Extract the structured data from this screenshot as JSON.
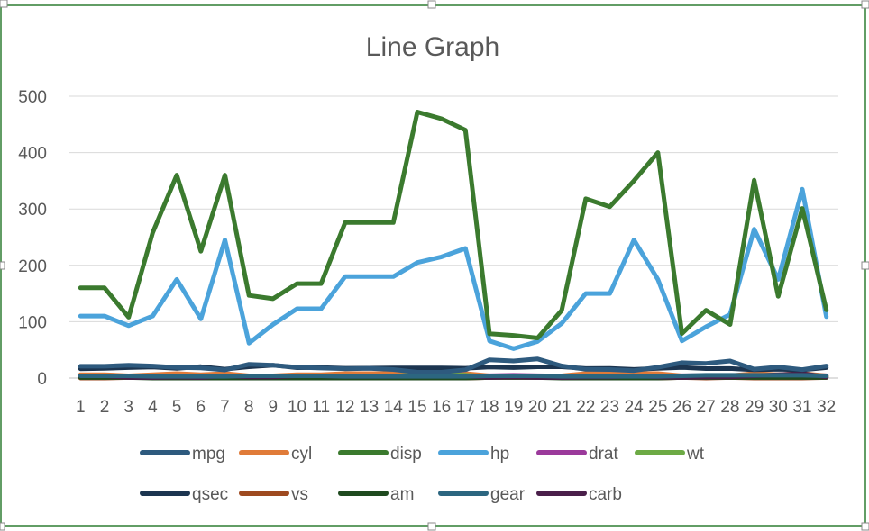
{
  "chart_data": {
    "type": "line",
    "title": "Line Graph",
    "xlabel": "",
    "ylabel": "",
    "ylim": [
      0,
      500
    ],
    "yticks": [
      0,
      100,
      200,
      300,
      400,
      500
    ],
    "grid": true,
    "legend_position": "bottom",
    "x": [
      1,
      2,
      3,
      4,
      5,
      6,
      7,
      8,
      9,
      10,
      11,
      12,
      13,
      14,
      15,
      16,
      17,
      18,
      19,
      20,
      21,
      22,
      23,
      24,
      25,
      26,
      27,
      28,
      29,
      30,
      31,
      32
    ],
    "series": [
      {
        "name": "mpg",
        "color": "#2E5A7E",
        "values": [
          21,
          21,
          22.8,
          21.4,
          18.7,
          18.1,
          14.3,
          24.4,
          22.8,
          19.2,
          17.8,
          16.4,
          17.3,
          15.2,
          10.4,
          10.4,
          14.7,
          32.4,
          30.4,
          33.9,
          21.5,
          15.5,
          15.2,
          13.3,
          19.2,
          27.3,
          26,
          30.4,
          15.8,
          19.7,
          15,
          21.4
        ]
      },
      {
        "name": "cyl",
        "color": "#E07B39",
        "values": [
          6,
          6,
          4,
          6,
          8,
          6,
          8,
          4,
          4,
          6,
          6,
          8,
          8,
          8,
          8,
          8,
          8,
          4,
          4,
          4,
          4,
          8,
          8,
          8,
          8,
          4,
          4,
          4,
          8,
          6,
          8,
          4
        ]
      },
      {
        "name": "disp",
        "color": "#3B7A2E",
        "values": [
          160,
          160,
          108,
          258,
          360,
          225,
          360,
          146.7,
          140.8,
          167.6,
          167.6,
          275.8,
          275.8,
          275.8,
          472,
          460,
          440,
          78.7,
          75.7,
          71.1,
          120.1,
          318,
          304,
          350,
          400,
          79,
          120.3,
          95.1,
          351,
          145,
          301,
          121
        ]
      },
      {
        "name": "hp",
        "color": "#4BA3DB",
        "values": [
          110,
          110,
          93,
          110,
          175,
          105,
          245,
          62,
          95,
          123,
          123,
          180,
          180,
          180,
          205,
          215,
          230,
          66,
          52,
          65,
          97,
          150,
          150,
          245,
          175,
          66,
          91,
          113,
          264,
          175,
          335,
          109
        ]
      },
      {
        "name": "drat",
        "color": "#9B3A9B",
        "values": [
          3.9,
          3.9,
          3.85,
          3.08,
          3.15,
          2.76,
          3.21,
          3.69,
          3.92,
          3.92,
          3.92,
          3.07,
          3.07,
          3.07,
          2.93,
          3,
          3.23,
          4.08,
          4.93,
          4.22,
          3.7,
          2.76,
          3.15,
          3.73,
          3.08,
          4.08,
          4.43,
          3.77,
          4.22,
          3.62,
          3.54,
          4.11
        ]
      },
      {
        "name": "wt",
        "color": "#6DAA45",
        "values": [
          2.62,
          2.875,
          2.32,
          3.215,
          3.44,
          3.46,
          3.57,
          3.19,
          3.15,
          3.44,
          3.44,
          4.07,
          3.73,
          3.78,
          5.25,
          5.424,
          5.345,
          2.2,
          1.615,
          1.835,
          2.465,
          3.52,
          3.435,
          3.84,
          3.845,
          1.935,
          2.14,
          1.513,
          3.17,
          2.77,
          3.57,
          2.78
        ]
      },
      {
        "name": "qsec",
        "color": "#1C3550",
        "values": [
          16.46,
          17.02,
          18.61,
          19.44,
          17.02,
          20.22,
          15.84,
          20,
          22.9,
          18.3,
          18.9,
          17.4,
          17.6,
          18,
          17.98,
          17.82,
          17.42,
          19.47,
          18.52,
          19.9,
          20.01,
          16.87,
          17.3,
          15.41,
          17.05,
          18.9,
          16.7,
          16.9,
          14.5,
          15.5,
          14.6,
          18.6
        ]
      },
      {
        "name": "vs",
        "color": "#9E4A20",
        "values": [
          0,
          0,
          1,
          1,
          0,
          1,
          0,
          1,
          1,
          1,
          1,
          0,
          0,
          0,
          0,
          0,
          0,
          1,
          1,
          1,
          1,
          0,
          0,
          0,
          0,
          1,
          0,
          1,
          0,
          0,
          0,
          1
        ]
      },
      {
        "name": "am",
        "color": "#1F4A1F",
        "values": [
          1,
          1,
          1,
          0,
          0,
          0,
          0,
          0,
          0,
          0,
          0,
          0,
          0,
          0,
          0,
          0,
          0,
          1,
          1,
          1,
          0,
          0,
          0,
          0,
          0,
          1,
          1,
          1,
          1,
          1,
          1,
          1
        ]
      },
      {
        "name": "gear",
        "color": "#2C6680",
        "values": [
          4,
          4,
          4,
          3,
          3,
          3,
          3,
          4,
          4,
          4,
          4,
          3,
          3,
          3,
          3,
          3,
          3,
          4,
          4,
          4,
          3,
          3,
          3,
          3,
          3,
          4,
          5,
          5,
          5,
          5,
          5,
          4
        ]
      },
      {
        "name": "carb",
        "color": "#4A1F4A",
        "values": [
          4,
          4,
          1,
          1,
          2,
          1,
          4,
          2,
          2,
          4,
          4,
          3,
          3,
          3,
          4,
          4,
          4,
          1,
          2,
          1,
          1,
          2,
          2,
          4,
          2,
          1,
          2,
          2,
          4,
          6,
          8,
          2
        ]
      }
    ]
  }
}
